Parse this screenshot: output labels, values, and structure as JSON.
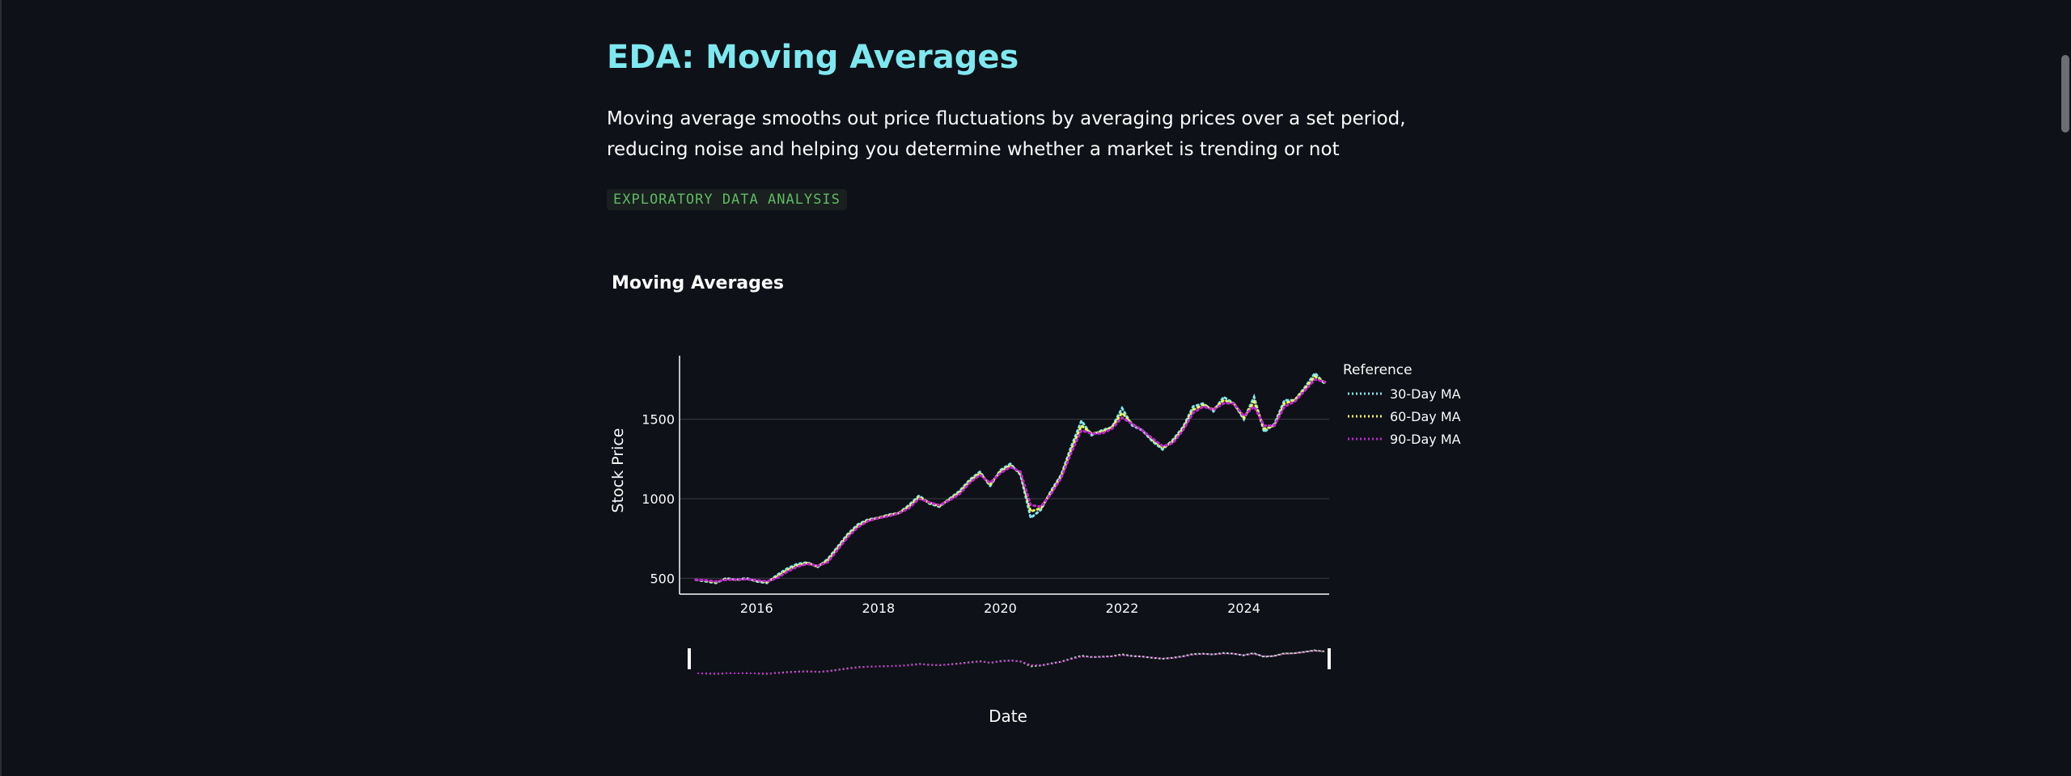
{
  "page": {
    "title": "EDA: Moving Averages",
    "description": "Moving average smooths out price fluctuations by averaging prices over a set period, reducing noise and helping you determine whether a market is trending or not",
    "badge": "EXPLORATORY DATA ANALYSIS"
  },
  "colors": {
    "title": "#7ee8f0",
    "ma30": "#7ee8f0",
    "ma60": "#f2f25a",
    "ma90": "#c026d3",
    "badge_text": "#5dbb63"
  },
  "chart_data": {
    "type": "line",
    "title": "Moving Averages",
    "xlabel": "Date",
    "ylabel": "Stock Price",
    "legend_title": "Reference",
    "legend_position": "right",
    "grid": "horizontal",
    "range_slider": true,
    "xlim": [
      "2015-01",
      "2025-05"
    ],
    "ylim": [
      400,
      1900
    ],
    "x_ticks": [
      "2016",
      "2018",
      "2020",
      "2022",
      "2024"
    ],
    "y_ticks": [
      500,
      1000,
      1500
    ],
    "x": [
      "2015-01",
      "2015-03",
      "2015-05",
      "2015-07",
      "2015-09",
      "2015-11",
      "2016-01",
      "2016-03",
      "2016-05",
      "2016-07",
      "2016-09",
      "2016-11",
      "2017-01",
      "2017-03",
      "2017-05",
      "2017-07",
      "2017-09",
      "2017-11",
      "2018-01",
      "2018-03",
      "2018-05",
      "2018-07",
      "2018-09",
      "2018-11",
      "2019-01",
      "2019-03",
      "2019-05",
      "2019-07",
      "2019-09",
      "2019-11",
      "2020-01",
      "2020-03",
      "2020-05",
      "2020-07",
      "2020-09",
      "2020-11",
      "2021-01",
      "2021-03",
      "2021-05",
      "2021-07",
      "2021-09",
      "2021-11",
      "2022-01",
      "2022-03",
      "2022-05",
      "2022-07",
      "2022-09",
      "2022-11",
      "2023-01",
      "2023-03",
      "2023-05",
      "2023-07",
      "2023-09",
      "2023-11",
      "2024-01",
      "2024-03",
      "2024-05",
      "2024-07",
      "2024-09",
      "2024-11",
      "2025-01",
      "2025-03",
      "2025-05"
    ],
    "series": [
      {
        "name": "30-Day MA",
        "dash": "dot",
        "values": [
          490,
          480,
          470,
          500,
          490,
          500,
          480,
          470,
          520,
          560,
          590,
          600,
          570,
          620,
          700,
          780,
          840,
          870,
          880,
          900,
          910,
          960,
          1020,
          970,
          950,
          1000,
          1050,
          1120,
          1170,
          1080,
          1180,
          1220,
          1150,
          880,
          930,
          1050,
          1150,
          1330,
          1490,
          1400,
          1430,
          1450,
          1570,
          1460,
          1430,
          1360,
          1310,
          1370,
          1450,
          1580,
          1600,
          1550,
          1640,
          1600,
          1500,
          1640,
          1420,
          1470,
          1620,
          1620,
          1700,
          1790,
          1720
        ]
      },
      {
        "name": "60-Day MA",
        "dash": "dot",
        "values": [
          490,
          485,
          475,
          495,
          490,
          495,
          485,
          475,
          510,
          550,
          580,
          595,
          575,
          610,
          690,
          770,
          830,
          865,
          880,
          895,
          910,
          950,
          1010,
          975,
          955,
          995,
          1040,
          1110,
          1160,
          1090,
          1170,
          1210,
          1160,
          920,
          940,
          1040,
          1140,
          1310,
          1460,
          1410,
          1420,
          1450,
          1540,
          1470,
          1430,
          1370,
          1320,
          1360,
          1440,
          1560,
          1590,
          1560,
          1620,
          1600,
          1510,
          1610,
          1440,
          1460,
          1600,
          1620,
          1690,
          1770,
          1730
        ]
      },
      {
        "name": "90-Day MA",
        "dash": "dot",
        "values": [
          490,
          488,
          480,
          490,
          492,
          494,
          488,
          480,
          500,
          540,
          572,
          590,
          578,
          600,
          680,
          760,
          822,
          860,
          878,
          890,
          908,
          940,
          1000,
          978,
          960,
          990,
          1030,
          1100,
          1150,
          1100,
          1160,
          1200,
          1170,
          960,
          950,
          1030,
          1130,
          1290,
          1430,
          1410,
          1410,
          1440,
          1510,
          1470,
          1430,
          1380,
          1330,
          1350,
          1430,
          1540,
          1580,
          1560,
          1600,
          1600,
          1520,
          1580,
          1460,
          1460,
          1580,
          1610,
          1680,
          1750,
          1735
        ]
      }
    ]
  }
}
